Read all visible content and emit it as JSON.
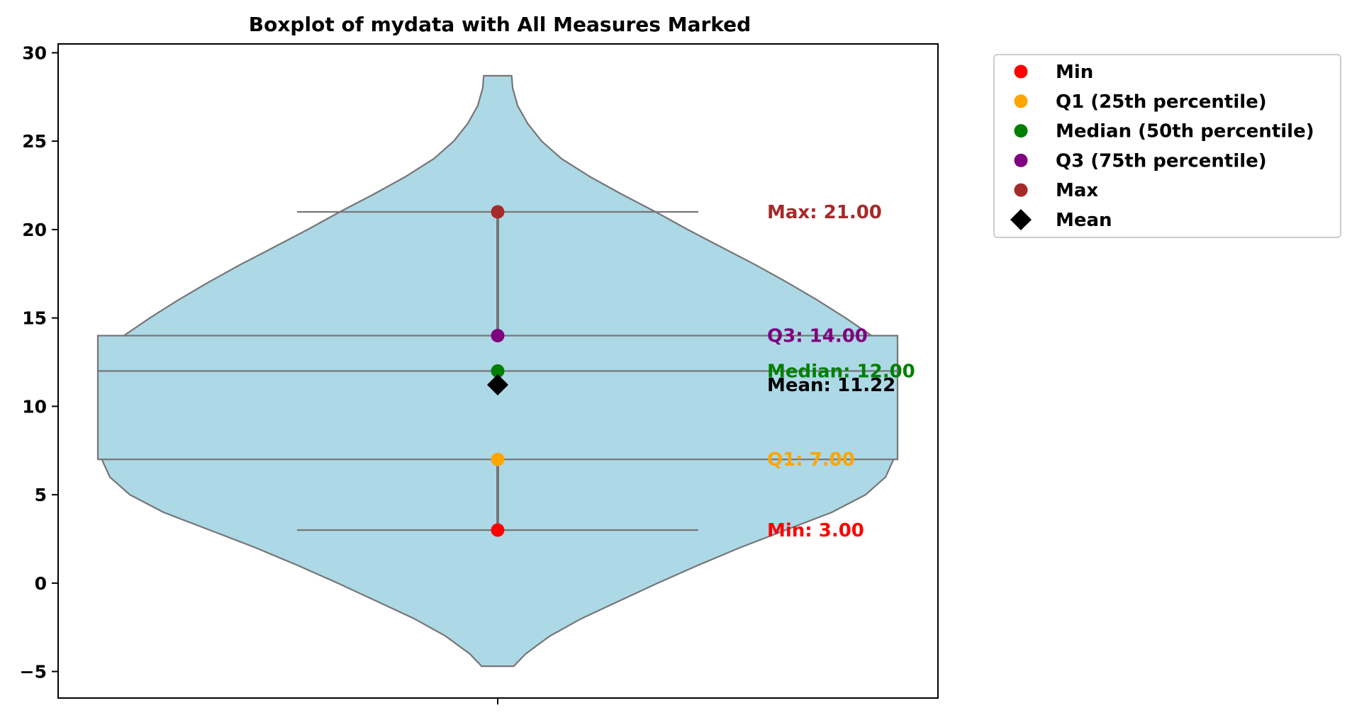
{
  "chart_data": {
    "type": "box",
    "title": "Boxplot of mydata with All Measures Marked",
    "xlabel": "",
    "ylabel": "",
    "ylim": [
      -6.5,
      30.5
    ],
    "yticks": [
      -5,
      0,
      5,
      10,
      15,
      20,
      25,
      30
    ],
    "ytick_labels": [
      "−5",
      "0",
      "5",
      "10",
      "15",
      "20",
      "25",
      "30"
    ],
    "grid": false,
    "legend_position": "outside-top-right",
    "summary": {
      "min": 3.0,
      "q1": 7.0,
      "median": 12.0,
      "q3": 14.0,
      "max": 21.0,
      "mean": 11.22
    },
    "violin_range": [
      -4.7,
      28.7
    ],
    "violin_profile": [
      {
        "y": -4.7,
        "w": 0.08
      },
      {
        "y": -4.0,
        "w": 0.14
      },
      {
        "y": -3.0,
        "w": 0.26
      },
      {
        "y": -2.0,
        "w": 0.42
      },
      {
        "y": -1.0,
        "w": 0.61
      },
      {
        "y": 0.0,
        "w": 0.8
      },
      {
        "y": 1.0,
        "w": 1.0
      },
      {
        "y": 2.0,
        "w": 1.21
      },
      {
        "y": 3.0,
        "w": 1.44
      },
      {
        "y": 4.0,
        "w": 1.67
      },
      {
        "y": 5.0,
        "w": 1.84
      },
      {
        "y": 6.0,
        "w": 1.94
      },
      {
        "y": 7.0,
        "w": 1.98
      },
      {
        "y": 9.0,
        "w": 2.0
      },
      {
        "y": 11.0,
        "w": 1.98
      },
      {
        "y": 13.0,
        "w": 1.92
      },
      {
        "y": 14.0,
        "w": 1.87
      },
      {
        "y": 15.0,
        "w": 1.74
      },
      {
        "y": 16.0,
        "w": 1.6
      },
      {
        "y": 17.0,
        "w": 1.45
      },
      {
        "y": 18.0,
        "w": 1.29
      },
      {
        "y": 19.0,
        "w": 1.12
      },
      {
        "y": 20.0,
        "w": 0.95
      },
      {
        "y": 21.0,
        "w": 0.79
      },
      {
        "y": 22.0,
        "w": 0.62
      },
      {
        "y": 23.0,
        "w": 0.46
      },
      {
        "y": 24.0,
        "w": 0.32
      },
      {
        "y": 25.0,
        "w": 0.22
      },
      {
        "y": 26.0,
        "w": 0.15
      },
      {
        "y": 27.0,
        "w": 0.1
      },
      {
        "y": 28.0,
        "w": 0.075
      },
      {
        "y": 28.7,
        "w": 0.07
      }
    ],
    "markers": [
      {
        "key": "min",
        "legend": "Min",
        "label": "Min: 3.00",
        "value": 3.0,
        "color": "#ff0000",
        "shape": "circle"
      },
      {
        "key": "q1",
        "legend": "Q1 (25th percentile)",
        "label": "Q1: 7.00",
        "value": 7.0,
        "color": "#ffa500",
        "shape": "circle"
      },
      {
        "key": "median",
        "legend": "Median (50th percentile)",
        "label": "Median: 12.00",
        "value": 12.0,
        "color": "#008000",
        "shape": "circle"
      },
      {
        "key": "q3",
        "legend": "Q3 (75th percentile)",
        "label": "Q3: 14.00",
        "value": 14.0,
        "color": "#800080",
        "shape": "circle"
      },
      {
        "key": "max",
        "legend": "Max",
        "label": "Max: 21.00",
        "value": 21.0,
        "color": "#a52a2a",
        "shape": "circle"
      },
      {
        "key": "mean",
        "legend": "Mean",
        "label": "Mean: 11.22",
        "value": 11.22,
        "color": "#000000",
        "shape": "diamond"
      }
    ],
    "colors": {
      "violin_fill": "#add8e6",
      "line": "#767676",
      "axis": "#000000"
    }
  }
}
